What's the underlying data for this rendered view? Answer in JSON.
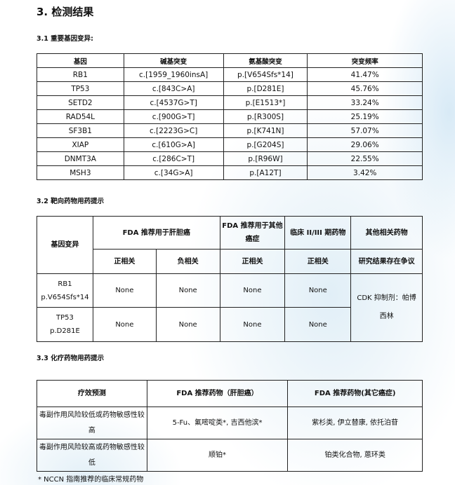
{
  "title": "3. 检测结果",
  "section1": {
    "heading": "3.1 重要基因变异:",
    "headers": [
      "基因",
      "碱基突变",
      "氨基酸突变",
      "突变频率"
    ],
    "rows": [
      [
        "RB1",
        "c.[1959_1960insA]",
        "p.[V654Sfs*14]",
        "41.47%"
      ],
      [
        "TP53",
        "c.[843C>A]",
        "p.[D281E]",
        "45.76%"
      ],
      [
        "SETD2",
        "c.[4537G>T]",
        "p.[E1513*]",
        "33.24%"
      ],
      [
        "RAD54L",
        "c.[900G>T]",
        "p.[R300S]",
        "25.19%"
      ],
      [
        "SF3B1",
        "c.[2223G>C]",
        "p.[K741N]",
        "57.07%"
      ],
      [
        "XIAP",
        "c.[610G>A]",
        "p.[G204S]",
        "29.06%"
      ],
      [
        "DNMT3A",
        "c.[286C>T]",
        "p.[R96W]",
        "22.55%"
      ],
      [
        "MSH3",
        "c.[34G>A]",
        "p.[A12T]",
        "3.42%"
      ]
    ]
  },
  "section2": {
    "heading": "3.2 靶向药物用药提示",
    "h_gene": "基因变异",
    "h_fda_liver": "FDA 推荐用于肝胆癌",
    "h_fda_other": "FDA 推荐用于其他癌症",
    "h_clinical": "临床 II/III 期药物",
    "h_other": "其他相关药物",
    "sub": [
      "正相关",
      "负相关",
      "正相关",
      "正相关",
      "研究结果存在争议"
    ],
    "rows": [
      {
        "gene": "RB1",
        "variant": "p.V654Sfs*14",
        "cells": [
          "None",
          "None",
          "None",
          "None"
        ]
      },
      {
        "gene": "TP53",
        "variant": "p.D281E",
        "cells": [
          "None",
          "None",
          "None",
          "None"
        ]
      }
    ],
    "other_drugs": "CDK 抑制剂：帕博西林"
  },
  "section3": {
    "heading": "3.3 化疗药物用药提示",
    "headers": [
      "疗效预测",
      "FDA 推荐药物（肝胆癌）",
      "FDA 推荐药物(其它癌症)"
    ],
    "rows": [
      [
        "毒副作用风险较低或药物敏感性较高",
        "5-Fu、氟嘧啶类*, 吉西他滨*",
        "紫杉类, 伊立替康, 依托泊苷"
      ],
      [
        "毒副作用风险较高或药物敏感性较低",
        "顺铂*",
        "铂类化合物, 蒽环类"
      ]
    ]
  },
  "footnote": "* NCCN 指南推荐的临床常规药物"
}
